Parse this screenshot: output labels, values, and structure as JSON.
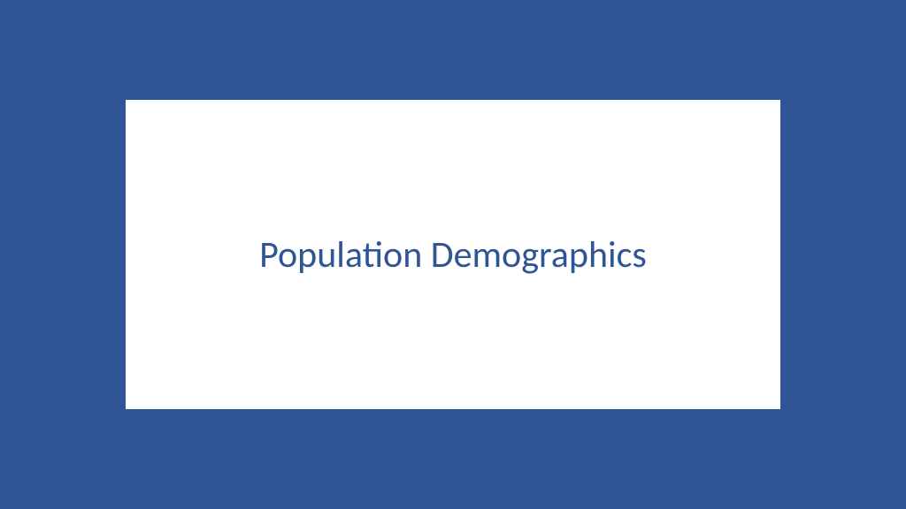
{
  "slide": {
    "title": "Population Demographics",
    "background_color": "#2f5597",
    "inner_background_color": "#ffffff",
    "title_color": "#2f5597",
    "title_fontsize": 42,
    "inner_width": 740,
    "inner_height": 350,
    "outer_width": 1024,
    "outer_height": 576
  }
}
